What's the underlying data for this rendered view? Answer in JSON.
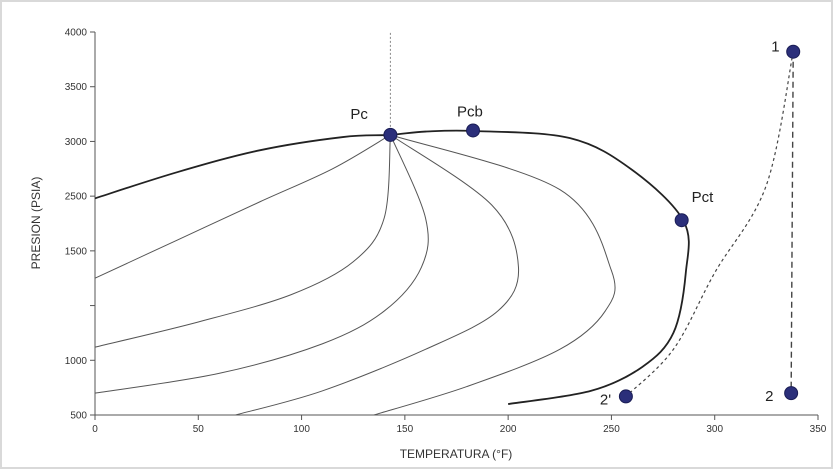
{
  "chart_data": {
    "type": "line",
    "title": "",
    "xlabel": "TEMPERATURA (°F)",
    "ylabel": "PRESION (PSIA)",
    "xlim": [
      0,
      350
    ],
    "ylim": [
      500,
      4000
    ],
    "x_ticks": [
      "0",
      "50",
      "100",
      "150",
      "200",
      "250",
      "300",
      "350"
    ],
    "y_ticks": [
      "500",
      "1000",
      "1500",
      "2500",
      "3000",
      "3500",
      "4000"
    ],
    "grid": false,
    "legend": "none",
    "colors": {
      "envelope": "#222222",
      "quality": "#555555",
      "point": "#2b2f7a",
      "path": "#444444"
    },
    "envelope": {
      "name": "",
      "points": [
        [
          0,
          2480
        ],
        [
          40,
          2720
        ],
        [
          80,
          2920
        ],
        [
          120,
          3040
        ],
        [
          143,
          3060
        ],
        [
          160,
          3090
        ],
        [
          184,
          3095
        ],
        [
          230,
          3030
        ],
        [
          260,
          2740
        ],
        [
          285,
          2270
        ],
        [
          286,
          1800
        ],
        [
          280,
          1250
        ],
        [
          265,
          940
        ],
        [
          240,
          720
        ],
        [
          200,
          600
        ]
      ]
    },
    "quality_lines": [
      {
        "points": [
          [
            0,
            1750
          ],
          [
            40,
            2100
          ],
          [
            80,
            2450
          ],
          [
            115,
            2750
          ],
          [
            143,
            3060
          ]
        ]
      },
      {
        "points": [
          [
            0,
            1120
          ],
          [
            50,
            1350
          ],
          [
            95,
            1600
          ],
          [
            125,
            1900
          ],
          [
            140,
            2300
          ],
          [
            143,
            3060
          ]
        ]
      },
      {
        "points": [
          [
            0,
            700
          ],
          [
            60,
            880
          ],
          [
            110,
            1150
          ],
          [
            140,
            1450
          ],
          [
            158,
            1850
          ],
          [
            160,
            2300
          ],
          [
            143,
            3060
          ]
        ]
      },
      {
        "points": [
          [
            68,
            500
          ],
          [
            110,
            720
          ],
          [
            160,
            1100
          ],
          [
            195,
            1450
          ],
          [
            205,
            1850
          ],
          [
            192,
            2420
          ],
          [
            143,
            3060
          ]
        ]
      },
      {
        "points": [
          [
            135,
            500
          ],
          [
            180,
            760
          ],
          [
            225,
            1100
          ],
          [
            247,
            1450
          ],
          [
            250,
            1820
          ],
          [
            225,
            2560
          ],
          [
            143,
            3060
          ]
        ]
      }
    ],
    "critical_line": {
      "x": 143,
      "y_from": 3060,
      "y_to": 4000
    },
    "key_points": [
      {
        "label": "Pc",
        "x": 143,
        "y": 3060
      },
      {
        "label": "Pcb",
        "x": 183,
        "y": 3100
      },
      {
        "label": "Pct",
        "x": 284,
        "y": 2280
      },
      {
        "label": "1",
        "x": 338,
        "y": 3820
      },
      {
        "label": "2",
        "x": 337,
        "y": 700
      },
      {
        "label": "2'",
        "x": 257,
        "y": 670
      }
    ],
    "paths": [
      {
        "from": [
          338,
          3820
        ],
        "to": [
          337,
          700
        ],
        "style": "dashed"
      },
      {
        "points": [
          [
            338,
            3820
          ],
          [
            325,
            2600
          ],
          [
            300,
            1800
          ],
          [
            280,
            1100
          ],
          [
            257,
            670
          ]
        ],
        "style": "dotted"
      }
    ]
  }
}
